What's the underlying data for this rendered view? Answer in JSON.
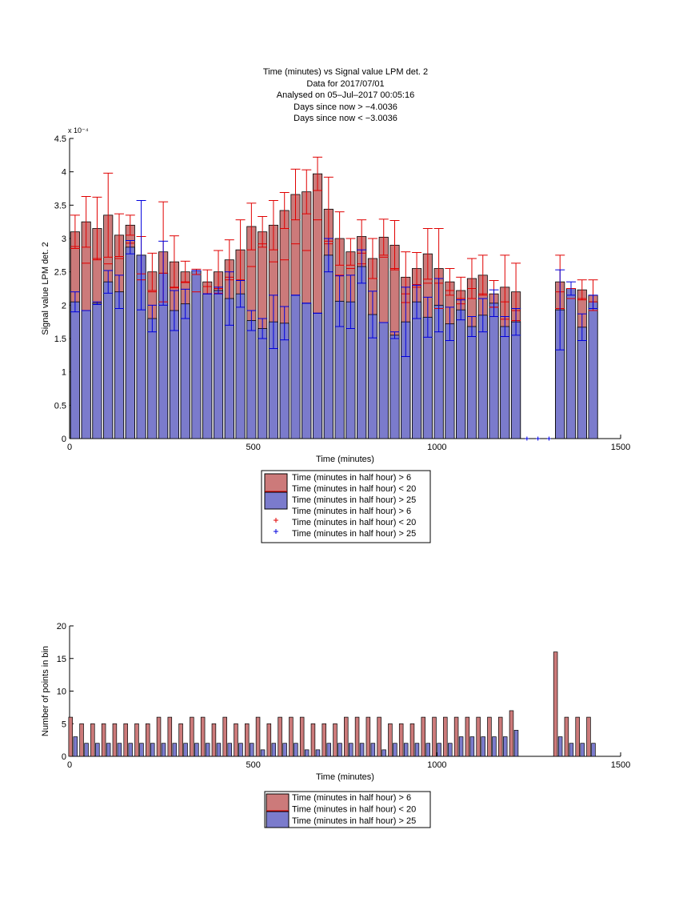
{
  "figure": {
    "title_lines": [
      "Time (minutes) vs Signal value LPM det. 2",
      "Data for 2017/07/01",
      "Analysed on 05–Jul–2017 00:05:16",
      "Days since now > −4.0036",
      "Days since now < −3.0036"
    ],
    "colors": {
      "red_fill": "#cc7a7a",
      "blue_fill": "#7b7bcc",
      "red_err": "#e00000",
      "blue_err": "#0000dd"
    }
  },
  "chart_data": [
    {
      "type": "bar",
      "title": "Time (minutes) vs Signal value LPM det. 2",
      "xlabel": "Time (minutes)",
      "ylabel": "Signal value LPM det. 2",
      "y_multiplier": "x 10⁻⁴",
      "xlim": [
        0,
        1500
      ],
      "ylim": [
        0,
        4.5
      ],
      "xticks": [
        0,
        500,
        1000,
        1500
      ],
      "yticks": [
        0,
        0.5,
        1,
        1.5,
        2,
        2.5,
        3,
        3.5,
        4,
        4.5
      ],
      "grid": false,
      "legend_position": "below",
      "legend": [
        "Time (minutes in half hour) > 6",
        "Time (minutes in half hour) < 20",
        "Time (minutes in half hour) > 25",
        "Time (minutes in half hour) > 6",
        "Time (minutes in half hour) < 20",
        "Time (minutes in half hour) > 25"
      ],
      "x": [
        15,
        45,
        75,
        105,
        135,
        165,
        195,
        225,
        255,
        285,
        315,
        345,
        375,
        405,
        435,
        465,
        495,
        525,
        555,
        585,
        615,
        645,
        675,
        705,
        735,
        765,
        795,
        825,
        855,
        885,
        915,
        945,
        975,
        1005,
        1035,
        1065,
        1095,
        1125,
        1155,
        1185,
        1215,
        1245,
        1275,
        1305,
        1335,
        1365,
        1395,
        1425
      ],
      "series": [
        {
          "name": "Time (minutes in half hour) > 6",
          "values": [
            3.1,
            3.25,
            3.15,
            3.35,
            3.05,
            3.2,
            2.75,
            2.5,
            2.8,
            2.65,
            2.5,
            2.5,
            2.35,
            2.5,
            2.68,
            2.83,
            3.18,
            3.1,
            3.2,
            3.42,
            3.66,
            3.7,
            3.97,
            3.44,
            3.0,
            2.8,
            3.03,
            2.7,
            3.02,
            2.9,
            2.42,
            2.55,
            2.77,
            2.55,
            2.35,
            2.22,
            2.4,
            2.45,
            2.17,
            2.27,
            2.2,
            null,
            null,
            null,
            2.35,
            2.25,
            2.23,
            2.15
          ],
          "errors": [
            0.25,
            0.38,
            0.47,
            0.63,
            0.32,
            0.15,
            0.28,
            0.28,
            0.75,
            0.39,
            0.16,
            0.04,
            0.18,
            0.32,
            0.3,
            0.45,
            0.35,
            0.23,
            0.37,
            0.27,
            0.38,
            0.33,
            0.25,
            0.48,
            0.4,
            0.2,
            0.25,
            0.3,
            0.27,
            0.37,
            0.38,
            0.24,
            0.38,
            0.6,
            0.2,
            0.2,
            0.3,
            0.3,
            0.2,
            0.48,
            0.43,
            null,
            null,
            null,
            0.4,
            0.0,
            0.15,
            0.23
          ]
        },
        {
          "name": "Time (minutes in half hour) < 20",
          "values": [
            2.88,
            2.63,
            2.7,
            2.62,
            2.7,
            2.93,
            2.38,
            2.2,
            2.48,
            2.27,
            2.35,
            2.2,
            2.28,
            2.25,
            2.42,
            2.37,
            2.58,
            2.92,
            2.65,
            2.68,
            2.92,
            2.82,
            3.28,
            2.92,
            2.45,
            2.55,
            2.62,
            2.4,
            2.72,
            2.55,
            2.17,
            2.27,
            2.33,
            2.33,
            2.22,
            2.1,
            2.25,
            2.17,
            1.97,
            2.05,
            1.92,
            null,
            null,
            null,
            2.2,
            2.1,
            2.1,
            2.05
          ],
          "errors": [
            null,
            null,
            null,
            null,
            null,
            null,
            null,
            null,
            null,
            null,
            null,
            null,
            null,
            null,
            null,
            null,
            null,
            null,
            null,
            null,
            null,
            null,
            null,
            null,
            null,
            null,
            null,
            null,
            null,
            null,
            null,
            null,
            null,
            null,
            null,
            null,
            null,
            null,
            null,
            null,
            null,
            null,
            null,
            null,
            null,
            null,
            null,
            null
          ]
        },
        {
          "name": "Time (minutes in half hour) > 25",
          "values": [
            2.05,
            1.92,
            2.03,
            2.35,
            2.2,
            2.87,
            2.75,
            1.8,
            2.48,
            1.92,
            2.02,
            2.52,
            2.17,
            2.22,
            2.1,
            2.17,
            1.77,
            1.65,
            1.75,
            1.73,
            2.15,
            2.03,
            1.88,
            2.75,
            2.06,
            2.05,
            2.58,
            1.86,
            1.74,
            1.55,
            1.75,
            2.05,
            1.82,
            2.0,
            1.72,
            1.93,
            1.68,
            1.85,
            2.03,
            1.68,
            1.75,
            0.0,
            0.0,
            0.0,
            1.93,
            2.25,
            1.67,
            2.05
          ],
          "errors": [
            0.15,
            0.0,
            0.02,
            0.17,
            0.25,
            0.1,
            0.82,
            0.2,
            0.48,
            0.3,
            0.22,
            0.0,
            0.0,
            0.05,
            0.4,
            0.2,
            0.15,
            0.15,
            0.4,
            0.25,
            0.0,
            0.0,
            0.0,
            0.25,
            0.38,
            0.4,
            0.25,
            0.35,
            0.0,
            0.05,
            0.52,
            0.25,
            0.3,
            0.4,
            0.25,
            0.15,
            0.15,
            0.25,
            0.2,
            0.15,
            0.2,
            0.0,
            0.0,
            0.0,
            0.6,
            0.1,
            0.2,
            0.1
          ]
        }
      ]
    },
    {
      "type": "bar",
      "xlabel": "Time (minutes)",
      "ylabel": "Number of points in bin",
      "xlim": [
        0,
        1500
      ],
      "ylim": [
        0,
        20
      ],
      "xticks": [
        0,
        500,
        1000,
        1500
      ],
      "yticks": [
        0,
        5,
        10,
        15,
        20
      ],
      "grid": false,
      "legend_position": "below",
      "legend": [
        "Time (minutes in half hour) > 6",
        "Time (minutes in half hour) < 20",
        "Time (minutes in half hour) > 25"
      ],
      "x": [
        15,
        45,
        75,
        105,
        135,
        165,
        195,
        225,
        255,
        285,
        315,
        345,
        375,
        405,
        435,
        465,
        495,
        525,
        555,
        585,
        615,
        645,
        675,
        705,
        735,
        765,
        795,
        825,
        855,
        885,
        915,
        945,
        975,
        1005,
        1035,
        1065,
        1095,
        1125,
        1155,
        1185,
        1215,
        1245,
        1275,
        1305,
        1335,
        1365,
        1395,
        1425
      ],
      "series": [
        {
          "name": "Time (minutes in half hour) > 6",
          "values": [
            6,
            5,
            5,
            5,
            5,
            5,
            5,
            5,
            6,
            6,
            5,
            6,
            6,
            5,
            6,
            5,
            5,
            6,
            5,
            6,
            6,
            6,
            5,
            5,
            5,
            6,
            6,
            6,
            6,
            5,
            5,
            5,
            6,
            6,
            6,
            6,
            6,
            6,
            6,
            6,
            7,
            0,
            0,
            0,
            16,
            6,
            6,
            6
          ]
        },
        {
          "name": "Time (minutes in half hour) > 25",
          "values": [
            3,
            2,
            2,
            2,
            2,
            2,
            2,
            2,
            2,
            2,
            2,
            2,
            2,
            2,
            2,
            2,
            2,
            1,
            2,
            2,
            2,
            1,
            1,
            2,
            2,
            2,
            2,
            2,
            1,
            2,
            2,
            2,
            2,
            2,
            2,
            3,
            3,
            3,
            3,
            3,
            4,
            0,
            0,
            0,
            3,
            2,
            2,
            2
          ]
        }
      ]
    }
  ]
}
